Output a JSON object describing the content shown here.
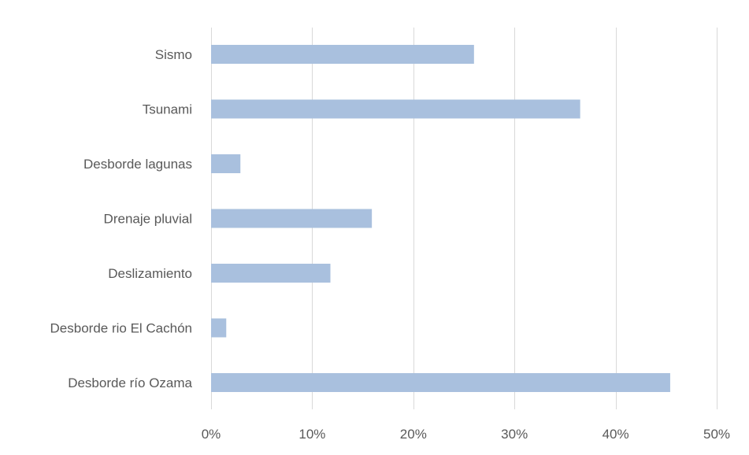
{
  "chart_data": {
    "type": "bar",
    "orientation": "horizontal",
    "title": "",
    "xlabel": "",
    "ylabel": "",
    "categories": [
      "Sismo",
      "Tsunami",
      "Desborde lagunas",
      "Drenaje pluvial",
      "Deslizamiento",
      "Desborde rio El Cachón",
      "Desborde río Ozama"
    ],
    "values": [
      0.26,
      0.365,
      0.029,
      0.159,
      0.118,
      0.015,
      0.454
    ],
    "xlim": [
      0,
      0.5
    ],
    "xticks": [
      0,
      0.1,
      0.2,
      0.3,
      0.4,
      0.5
    ],
    "xtick_labels": [
      "0%",
      "10%",
      "20%",
      "30%",
      "40%",
      "50%"
    ],
    "grid": true,
    "legend": "none",
    "bar_color": "#a9c0de",
    "grid_color": "#d9d9d9",
    "label_color": "#595959"
  }
}
